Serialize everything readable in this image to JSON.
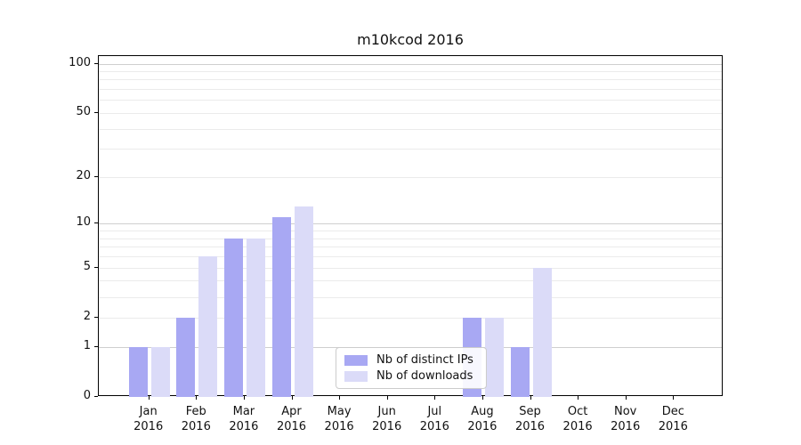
{
  "title": "m10kcod 2016",
  "chart_data": {
    "type": "bar",
    "title": "m10kcod 2016",
    "categories": [
      "Jan 2016",
      "Feb 2016",
      "Mar 2016",
      "Apr 2016",
      "May 2016",
      "Jun 2016",
      "Jul 2016",
      "Aug 2016",
      "Sep 2016",
      "Oct 2016",
      "Nov 2016",
      "Dec 2016"
    ],
    "series": [
      {
        "name": "Nb of distinct IPs",
        "color": "#a8a8f3",
        "values": [
          1,
          2,
          8,
          11,
          0,
          0,
          0,
          2,
          1,
          0,
          0,
          0
        ]
      },
      {
        "name": "Nb of downloads",
        "color": "#dbdbf8",
        "values": [
          1,
          6,
          8,
          13,
          0,
          0,
          0,
          2,
          5,
          0,
          0,
          0
        ]
      }
    ],
    "xlabel": "",
    "ylabel": "",
    "ylim": [
      0,
      100
    ],
    "y_scale": "log1p",
    "y_ticks": [
      {
        "value": 100,
        "label": "100"
      },
      {
        "value": 50,
        "label": "50"
      },
      {
        "value": 20,
        "label": "20"
      },
      {
        "value": 10,
        "label": "10"
      },
      {
        "value": 5,
        "label": "5"
      },
      {
        "value": 2,
        "label": "2"
      },
      {
        "value": 1,
        "label": "1"
      },
      {
        "value": 0,
        "label": "0"
      }
    ],
    "grid": "horizontal major+minor",
    "legend_position": "inside lower-center"
  },
  "legend": {
    "items": [
      {
        "label": "Nb of distinct IPs",
        "color": "#a8a8f3"
      },
      {
        "label": "Nb of downloads",
        "color": "#dbdbf8"
      }
    ]
  }
}
